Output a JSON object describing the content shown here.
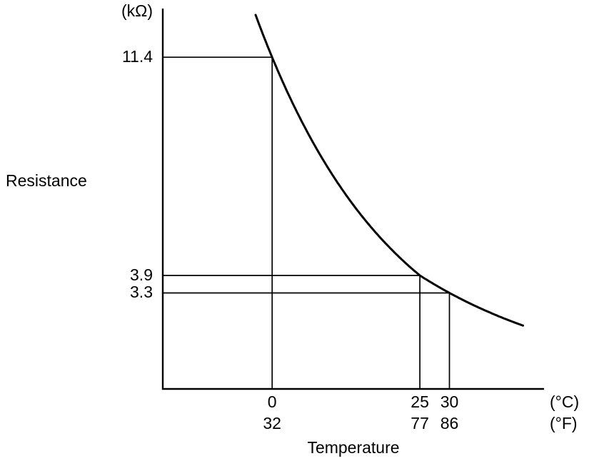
{
  "chart_data": {
    "type": "line",
    "title": "",
    "xlabel": "Temperature",
    "ylabel": "Resistance",
    "y_unit": "(kΩ)",
    "x_unit_celsius": "(°C)",
    "x_unit_fahrenheit": "(°F)",
    "curve": "exponential-decay",
    "points": [
      {
        "temp_c": 0,
        "temp_f": 32,
        "resistance_kohm": 11.4
      },
      {
        "temp_c": 25,
        "temp_f": 77,
        "resistance_kohm": 3.9
      },
      {
        "temp_c": 30,
        "temp_f": 86,
        "resistance_kohm": 3.3
      }
    ],
    "y_ticks": [
      "11.4",
      "3.9",
      "3.3"
    ],
    "x_ticks_celsius": [
      "0",
      "25",
      "30"
    ],
    "x_ticks_fahrenheit": [
      "32",
      "77",
      "86"
    ],
    "xlim_c": [
      -18.5,
      46
    ],
    "ylim": [
      0,
      13
    ],
    "curve_domain_c": [
      -2.8,
      42.5
    ],
    "grid": false,
    "legend": "none",
    "line_color": "#000000"
  }
}
